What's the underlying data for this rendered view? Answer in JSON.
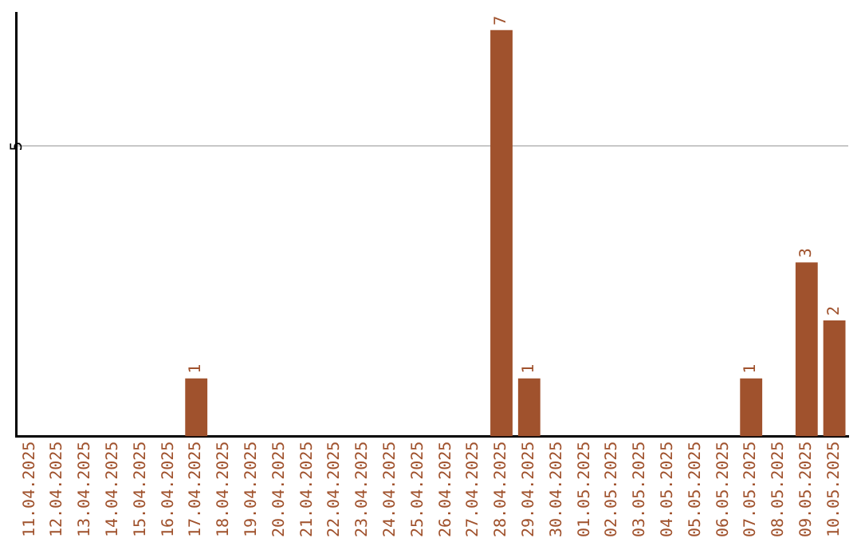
{
  "chart_data": {
    "type": "bar",
    "categories": [
      "11.04.2025",
      "12.04.2025",
      "13.04.2025",
      "14.04.2025",
      "15.04.2025",
      "16.04.2025",
      "17.04.2025",
      "18.04.2025",
      "19.04.2025",
      "20.04.2025",
      "21.04.2025",
      "22.04.2025",
      "23.04.2025",
      "24.04.2025",
      "25.04.2025",
      "26.04.2025",
      "27.04.2025",
      "28.04.2025",
      "29.04.2025",
      "30.04.2025",
      "01.05.2025",
      "02.05.2025",
      "03.05.2025",
      "04.05.2025",
      "05.05.2025",
      "06.05.2025",
      "07.05.2025",
      "08.05.2025",
      "09.05.2025",
      "10.05.2025"
    ],
    "values": [
      0,
      0,
      0,
      0,
      0,
      0,
      1,
      0,
      0,
      0,
      0,
      0,
      0,
      0,
      0,
      0,
      0,
      7,
      1,
      0,
      0,
      0,
      0,
      0,
      0,
      0,
      1,
      0,
      3,
      2
    ],
    "value_labels": [
      null,
      null,
      null,
      null,
      null,
      null,
      "1",
      null,
      null,
      null,
      null,
      null,
      null,
      null,
      null,
      null,
      null,
      "7",
      "1",
      null,
      null,
      null,
      null,
      null,
      null,
      null,
      "1",
      null,
      "3",
      "2"
    ],
    "color": "#a0522d",
    "ylim": [
      0,
      7.3
    ],
    "yticks": [
      5
    ],
    "grid": "y",
    "legend": false
  }
}
